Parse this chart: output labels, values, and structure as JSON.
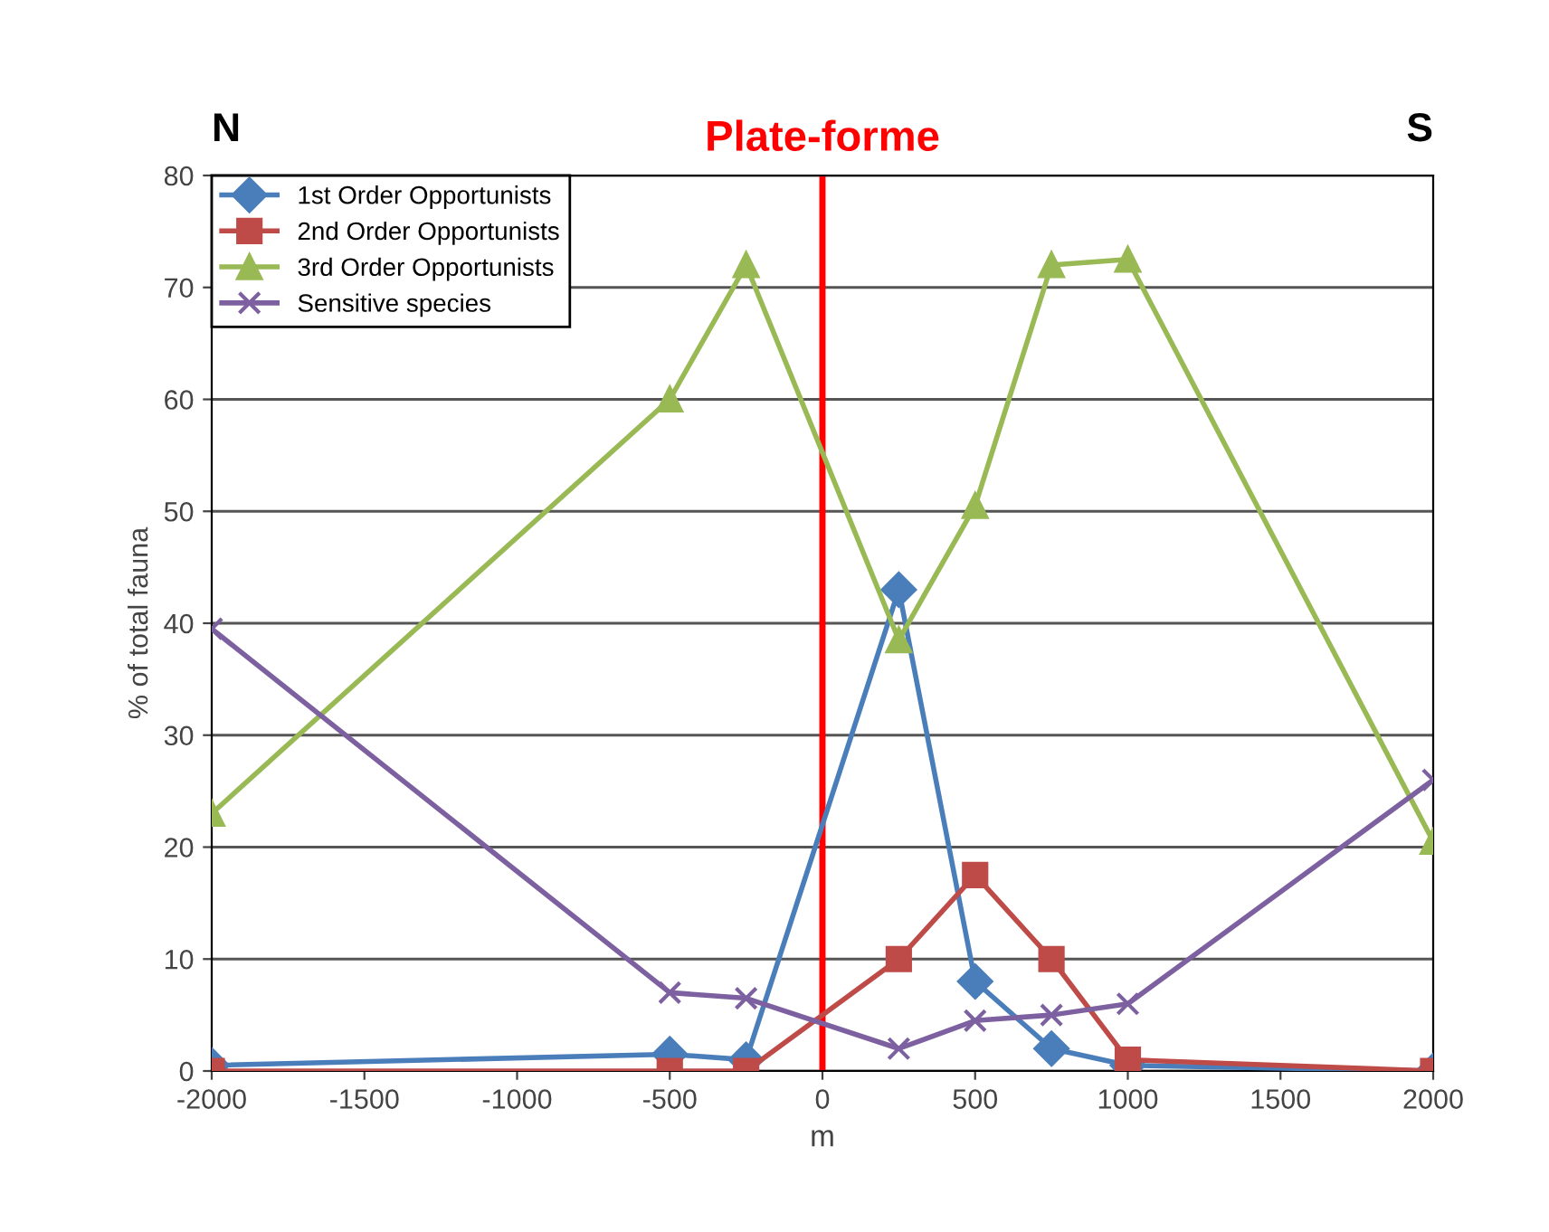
{
  "chart_data": {
    "type": "line",
    "xlabel": "m",
    "ylabel": "% of total fauna",
    "x": [
      -2000,
      -500,
      -250,
      250,
      500,
      750,
      1000,
      2000
    ],
    "series": [
      {
        "name": "1st Order Opportunists",
        "color": "#4a7ebb",
        "marker": "diamond",
        "values": [
          0.5,
          1.5,
          1,
          43,
          8,
          2,
          0.5,
          0
        ]
      },
      {
        "name": "2nd Order Opportunists",
        "color": "#be4b48",
        "marker": "square",
        "values": [
          0,
          0,
          0,
          10,
          17.5,
          10,
          1,
          0
        ]
      },
      {
        "name": "3rd Order Opportunists",
        "color": "#98b954",
        "marker": "triangle",
        "values": [
          23,
          60,
          72,
          38.5,
          50.5,
          72,
          72.5,
          20.5
        ]
      },
      {
        "name": "Sensitive species",
        "color": "#7d60a0",
        "marker": "cross",
        "values": [
          39.5,
          7,
          6.5,
          2,
          4.5,
          5,
          6,
          26
        ]
      }
    ],
    "xlim": [
      -2000,
      2000
    ],
    "xticks": [
      -2000,
      -1500,
      -1000,
      -500,
      0,
      500,
      1000,
      1500,
      2000
    ],
    "ylim": [
      0,
      80
    ],
    "yticks": [
      0,
      10,
      20,
      30,
      40,
      50,
      60,
      70,
      80
    ],
    "grid": "y",
    "legend": "top left",
    "line_style": "solid",
    "ref_lines": [
      {
        "axis": "x",
        "value": 0,
        "label": "Plate-forme",
        "color": "#ff0000"
      }
    ],
    "annotations": [
      "N",
      "S"
    ]
  }
}
